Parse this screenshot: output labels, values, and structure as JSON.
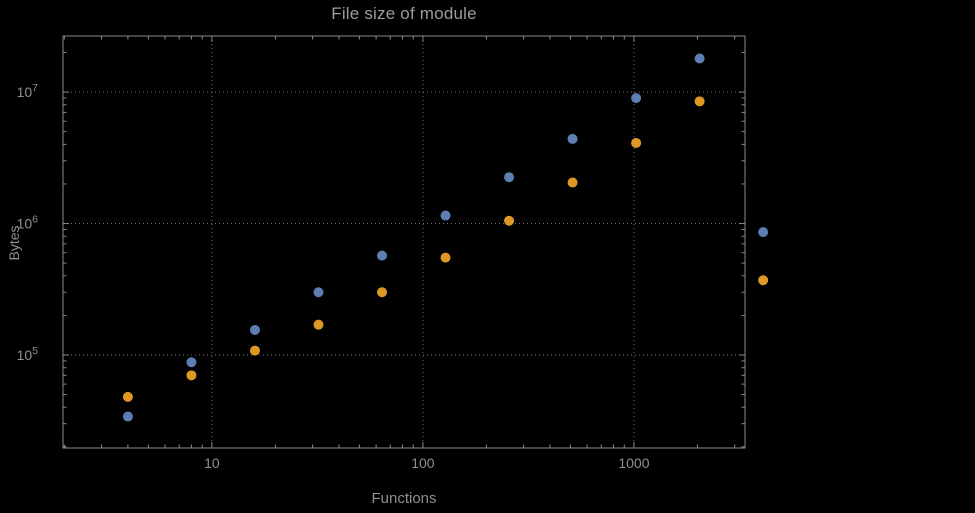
{
  "chart_data": {
    "type": "scatter",
    "title": "File size of module",
    "xlabel": "Functions",
    "ylabel": "Bytes",
    "x_scale": "log",
    "y_scale": "log",
    "xlim": [
      1.97,
      3360
    ],
    "ylim": [
      19600,
      26700000
    ],
    "grid": "dotted",
    "legend": "none",
    "x_ticks": [
      {
        "value": 10,
        "label": "10"
      },
      {
        "value": 100,
        "label": "100"
      },
      {
        "value": 1000,
        "label": "1000"
      }
    ],
    "y_ticks": [
      {
        "value": 100000,
        "base": "10",
        "exponent": "5"
      },
      {
        "value": 1000000,
        "base": "10",
        "exponent": "6"
      },
      {
        "value": 10000000,
        "base": "10",
        "exponent": "7"
      }
    ],
    "series": [
      {
        "name": "series-blue",
        "color": "#5e81b5",
        "x": [
          4,
          8,
          16,
          32,
          64,
          128,
          256,
          512,
          1024,
          2048,
          4096
        ],
        "y": [
          34000,
          88000,
          155000,
          300000,
          570000,
          1150000,
          2250000,
          4400000,
          9000000,
          18000000,
          860000
        ]
      },
      {
        "name": "series-orange",
        "color": "#e19c24",
        "x": [
          4,
          8,
          16,
          32,
          64,
          128,
          256,
          512,
          1024,
          2048,
          4096
        ],
        "y": [
          48000,
          70000,
          108000,
          170000,
          300000,
          550000,
          1050000,
          2050000,
          4100000,
          8500000,
          370000
        ]
      }
    ],
    "colors": {
      "background": "#000000",
      "frame": "#8a8a8a",
      "grid": "#757575",
      "tick_text": "#8f8f8f",
      "title_text": "#9c9c9c"
    },
    "marker_radius": 5
  }
}
